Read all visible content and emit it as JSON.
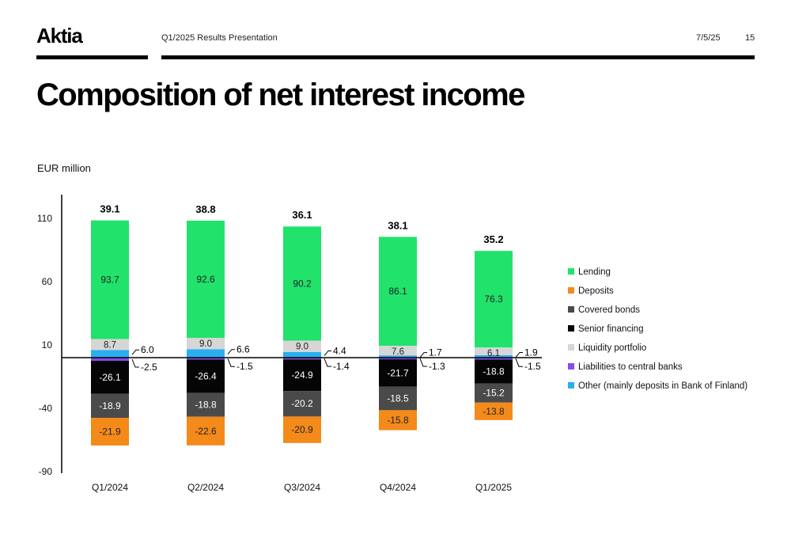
{
  "header": {
    "logo": "Aktia",
    "subtitle": "Q1/2025 Results Presentation",
    "date": "7/5/25",
    "page_number": "15"
  },
  "title": "Composition of net interest income",
  "unit_label": "EUR million",
  "colors": {
    "Lending": "#21e26b",
    "Deposits": "#f48a1a",
    "Covered bonds": "#4a4a4a",
    "Senior financing": "#050505",
    "Liquidity portfolio": "#d6d6d6",
    "Liabilities to central banks": "#8a4bea",
    "Other (mainly deposits in Bank of Finland)": "#29aff0"
  },
  "chart_data": {
    "type": "bar",
    "stacked": true,
    "categories": [
      "Q1/2024",
      "Q2/2024",
      "Q3/2024",
      "Q4/2024",
      "Q1/2025"
    ],
    "totals": [
      "39.1",
      "38.8",
      "36.1",
      "38.1",
      "35.2"
    ],
    "yticks": [
      "110",
      "60",
      "10",
      "-40",
      "-90"
    ],
    "ylim": [
      -90,
      130
    ],
    "grid": false,
    "legend_position": "right",
    "series": [
      {
        "name": "Lending",
        "values": [
          93.7,
          92.6,
          90.2,
          86.1,
          76.3
        ],
        "labels": [
          "93.7",
          "92.6",
          "90.2",
          "86.1",
          "76.3"
        ]
      },
      {
        "name": "Deposits",
        "values": [
          -21.9,
          -22.6,
          -20.9,
          -15.8,
          -13.8
        ],
        "labels": [
          "-21.9",
          "-22.6",
          "-20.9",
          "-15.8",
          "-13.8"
        ]
      },
      {
        "name": "Covered bonds",
        "values": [
          -18.9,
          -18.8,
          -20.2,
          -18.5,
          -15.2
        ],
        "labels": [
          "-18.9",
          "-18.8",
          "-20.2",
          "-18.5",
          "-15.2"
        ]
      },
      {
        "name": "Senior financing",
        "values": [
          -26.1,
          -26.4,
          -24.9,
          -21.7,
          -18.8
        ],
        "labels": [
          "-26.1",
          "-26.4",
          "-24.9",
          "-21.7",
          "-18.8"
        ]
      },
      {
        "name": "Liquidity portfolio",
        "values": [
          8.7,
          9.0,
          9.0,
          7.6,
          6.1
        ],
        "labels": [
          "8.7",
          "9.0",
          "9.0",
          "7.6",
          "6.1"
        ]
      },
      {
        "name": "Liabilities to central banks",
        "values": [
          -2.5,
          -1.5,
          -1.4,
          -1.3,
          -1.5
        ],
        "labels": [
          "-2.5",
          "-1.5",
          "-1.4",
          "-1.3",
          "-1.5"
        ]
      },
      {
        "name": "Other (mainly deposits in Bank of Finland)",
        "values": [
          6.0,
          6.6,
          4.4,
          1.7,
          1.9
        ],
        "labels": [
          "6.0",
          "6.6",
          "4.4",
          "1.7",
          "1.9"
        ]
      }
    ]
  }
}
